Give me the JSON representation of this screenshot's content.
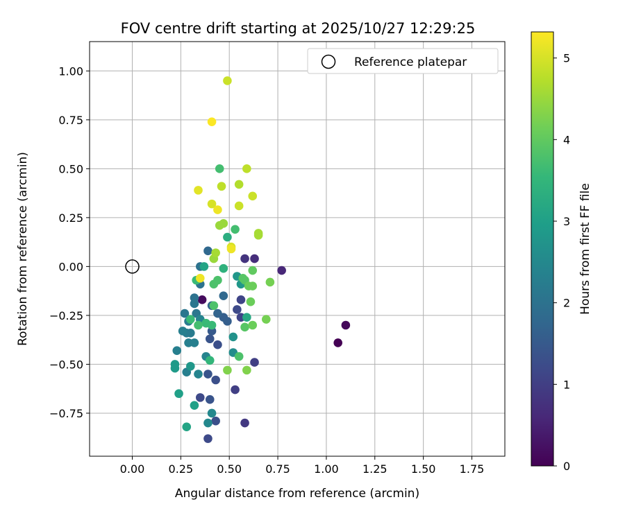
{
  "chart_data": {
    "type": "scatter",
    "title": "FOV centre drift starting at 2025/10/27 12:29:25",
    "xlabel": "Angular distance from reference (arcmin)",
    "ylabel": "Rotation from reference (arcmin)",
    "xlim": [
      -0.22,
      1.92
    ],
    "ylim": [
      -0.97,
      1.15
    ],
    "xticks": [
      0.0,
      0.25,
      0.5,
      0.75,
      1.0,
      1.25,
      1.5,
      1.75
    ],
    "xtick_labels": [
      "0.00",
      "0.25",
      "0.50",
      "0.75",
      "1.00",
      "1.25",
      "1.50",
      "1.75"
    ],
    "yticks": [
      -0.75,
      -0.5,
      -0.25,
      0.0,
      0.25,
      0.5,
      0.75,
      1.0
    ],
    "ytick_labels": [
      "−0.75",
      "−0.50",
      "−0.25",
      "0.00",
      "0.25",
      "0.50",
      "0.75",
      "1.00"
    ],
    "grid": true,
    "legend": {
      "position": "top-right",
      "entries": [
        "Reference platepar"
      ]
    },
    "reference_point": {
      "x": 0.0,
      "y": 0.0,
      "label": "Reference platepar"
    },
    "colorbar": {
      "label": "Hours from first FF file",
      "range": [
        0,
        5.32
      ],
      "ticks": [
        0,
        1,
        2,
        3,
        4,
        5
      ],
      "tick_labels": [
        "0",
        "1",
        "2",
        "3",
        "4",
        "5"
      ],
      "colormap_stops": [
        "#440154",
        "#482878",
        "#3e4989",
        "#31688e",
        "#26828e",
        "#1f9e89",
        "#35b779",
        "#6ece58",
        "#b5de2b",
        "#fde725"
      ]
    },
    "points": [
      [
        1.06,
        -0.39,
        0.0
      ],
      [
        1.1,
        -0.3,
        0.1
      ],
      [
        0.36,
        -0.17,
        0.15
      ],
      [
        0.77,
        -0.02,
        0.6
      ],
      [
        0.63,
        0.04,
        0.7
      ],
      [
        0.58,
        0.04,
        0.8
      ],
      [
        0.58,
        -0.8,
        0.9
      ],
      [
        0.53,
        -0.63,
        1.0
      ],
      [
        0.63,
        -0.49,
        1.0
      ],
      [
        0.56,
        -0.26,
        1.1
      ],
      [
        0.56,
        -0.17,
        1.1
      ],
      [
        0.54,
        -0.22,
        1.2
      ],
      [
        0.39,
        -0.88,
        1.2
      ],
      [
        0.35,
        -0.67,
        1.2
      ],
      [
        0.43,
        -0.79,
        1.3
      ],
      [
        0.43,
        -0.58,
        1.3
      ],
      [
        0.44,
        -0.4,
        1.3
      ],
      [
        0.39,
        -0.55,
        1.4
      ],
      [
        0.4,
        -0.68,
        1.4
      ],
      [
        0.4,
        -0.37,
        1.4
      ],
      [
        0.41,
        -0.33,
        1.5
      ],
      [
        0.47,
        -0.26,
        1.6
      ],
      [
        0.49,
        -0.28,
        1.6
      ],
      [
        0.44,
        -0.24,
        1.7
      ],
      [
        0.41,
        -0.2,
        1.7
      ],
      [
        0.47,
        -0.15,
        1.8
      ],
      [
        0.39,
        0.08,
        1.8
      ],
      [
        0.35,
        0.0,
        2.0
      ],
      [
        0.35,
        -0.09,
        2.0
      ],
      [
        0.32,
        -0.16,
        2.0
      ],
      [
        0.32,
        -0.19,
        2.1
      ],
      [
        0.33,
        -0.24,
        2.1
      ],
      [
        0.27,
        -0.24,
        2.1
      ],
      [
        0.29,
        -0.28,
        2.2
      ],
      [
        0.3,
        -0.34,
        2.2
      ],
      [
        0.28,
        -0.34,
        2.2
      ],
      [
        0.26,
        -0.33,
        2.3
      ],
      [
        0.29,
        -0.39,
        2.3
      ],
      [
        0.32,
        -0.39,
        2.3
      ],
      [
        0.23,
        -0.43,
        2.3
      ],
      [
        0.28,
        -0.54,
        2.3
      ],
      [
        0.34,
        -0.55,
        2.4
      ],
      [
        0.38,
        -0.46,
        2.4
      ],
      [
        0.35,
        -0.27,
        2.4
      ],
      [
        0.41,
        -0.75,
        2.5
      ],
      [
        0.39,
        -0.8,
        2.5
      ],
      [
        0.52,
        -0.44,
        2.6
      ],
      [
        0.52,
        -0.36,
        2.7
      ],
      [
        0.54,
        -0.05,
        2.8
      ],
      [
        0.56,
        -0.09,
        2.8
      ],
      [
        0.3,
        -0.51,
        2.8
      ],
      [
        0.22,
        -0.5,
        2.9
      ],
      [
        0.22,
        -0.52,
        2.9
      ],
      [
        0.24,
        -0.65,
        3.0
      ],
      [
        0.32,
        -0.71,
        3.0
      ],
      [
        0.28,
        -0.82,
        3.1
      ],
      [
        0.37,
        0.0,
        3.1
      ],
      [
        0.59,
        -0.26,
        3.2
      ],
      [
        0.49,
        0.15,
        3.3
      ],
      [
        0.47,
        -0.01,
        3.4
      ],
      [
        0.4,
        -0.48,
        3.5
      ],
      [
        0.33,
        -0.07,
        3.6
      ],
      [
        0.3,
        -0.27,
        3.6
      ],
      [
        0.38,
        -0.29,
        3.6
      ],
      [
        0.41,
        -0.3,
        3.6
      ],
      [
        0.34,
        -0.3,
        3.7
      ],
      [
        0.53,
        0.19,
        3.7
      ],
      [
        0.45,
        0.5,
        3.7
      ],
      [
        0.44,
        -0.07,
        3.8
      ],
      [
        0.42,
        -0.09,
        3.8
      ],
      [
        0.42,
        -0.2,
        3.8
      ],
      [
        0.55,
        -0.46,
        3.8
      ],
      [
        0.57,
        -0.06,
        3.9
      ],
      [
        0.58,
        -0.07,
        3.9
      ],
      [
        0.58,
        -0.31,
        3.9
      ],
      [
        0.62,
        -0.02,
        4.0
      ],
      [
        0.6,
        -0.1,
        4.1
      ],
      [
        0.62,
        -0.1,
        4.1
      ],
      [
        0.61,
        -0.18,
        4.1
      ],
      [
        0.62,
        -0.3,
        4.1
      ],
      [
        0.69,
        -0.27,
        4.2
      ],
      [
        0.71,
        -0.08,
        4.2
      ],
      [
        0.49,
        -0.53,
        4.3
      ],
      [
        0.59,
        -0.53,
        4.3
      ],
      [
        0.47,
        0.22,
        4.5
      ],
      [
        0.45,
        0.21,
        4.5
      ],
      [
        0.42,
        0.04,
        4.5
      ],
      [
        0.43,
        0.07,
        4.6
      ],
      [
        0.65,
        0.17,
        4.6
      ],
      [
        0.65,
        0.16,
        4.6
      ],
      [
        0.55,
        0.42,
        4.7
      ],
      [
        0.59,
        0.5,
        4.8
      ],
      [
        0.46,
        0.41,
        4.8
      ],
      [
        0.62,
        0.36,
        4.9
      ],
      [
        0.55,
        0.31,
        4.9
      ],
      [
        0.49,
        0.95,
        4.9
      ],
      [
        0.41,
        0.32,
        5.0
      ],
      [
        0.51,
        0.1,
        5.0
      ],
      [
        0.34,
        0.39,
        5.1
      ],
      [
        0.44,
        0.29,
        5.2
      ],
      [
        0.51,
        0.09,
        5.2
      ],
      [
        0.35,
        -0.06,
        5.2
      ],
      [
        0.41,
        0.74,
        5.3
      ]
    ]
  }
}
